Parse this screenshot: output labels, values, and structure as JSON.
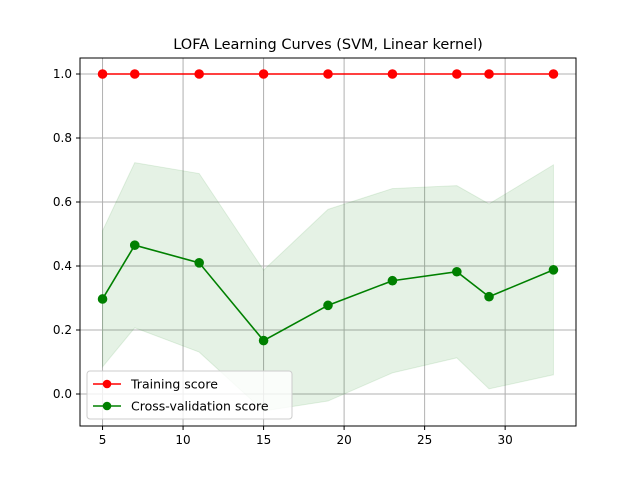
{
  "chart_data": {
    "type": "line",
    "title": "LOFA Learning Curves (SVM, Linear kernel)",
    "xlabel": "",
    "ylabel": "",
    "xlim": [
      3.6,
      34.4
    ],
    "ylim": [
      -0.1,
      1.05
    ],
    "x_ticks": [
      5,
      10,
      15,
      20,
      25,
      30
    ],
    "y_ticks": [
      0.0,
      0.2,
      0.4,
      0.6,
      0.8,
      1.0
    ],
    "x_tick_labels": [
      "5",
      "10",
      "15",
      "20",
      "25",
      "30"
    ],
    "y_tick_labels": [
      "0.0",
      "0.2",
      "0.4",
      "0.6",
      "0.8",
      "1.0"
    ],
    "grid": true,
    "legend_position": "lower-left",
    "x": [
      5,
      7,
      11,
      15,
      19,
      23,
      27,
      29,
      33
    ],
    "series": [
      {
        "name": "Training score",
        "color": "#ff0000",
        "marker": "circle",
        "values": [
          1.0,
          1.0,
          1.0,
          1.0,
          1.0,
          1.0,
          1.0,
          1.0,
          1.0
        ],
        "band_upper": [
          1.0,
          1.0,
          1.0,
          1.0,
          1.0,
          1.0,
          1.0,
          1.0,
          1.0
        ],
        "band_lower": [
          1.0,
          1.0,
          1.0,
          1.0,
          1.0,
          1.0,
          1.0,
          1.0,
          1.0
        ]
      },
      {
        "name": "Cross-validation score",
        "color": "#008000",
        "marker": "circle",
        "values": [
          0.297,
          0.465,
          0.41,
          0.167,
          0.277,
          0.354,
          0.382,
          0.304,
          0.388
        ],
        "band_upper": [
          0.51,
          0.723,
          0.689,
          0.387,
          0.577,
          0.642,
          0.651,
          0.594,
          0.716
        ],
        "band_lower": [
          0.085,
          0.207,
          0.131,
          -0.053,
          -0.022,
          0.066,
          0.113,
          0.016,
          0.06
        ],
        "band_color": "#008000"
      }
    ]
  }
}
